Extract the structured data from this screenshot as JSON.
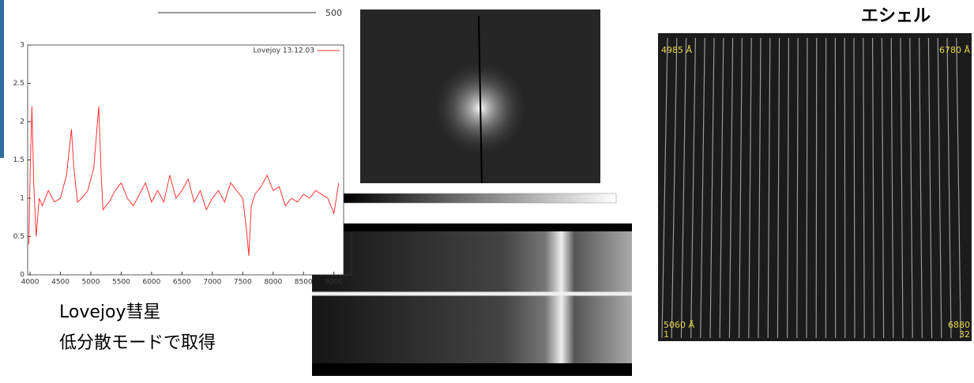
{
  "chart_data": {
    "type": "line",
    "legend": "Lovejoy 13.12.03",
    "color": "#ff3333",
    "xlim": [
      3960,
      9160
    ],
    "ylim": [
      0,
      3
    ],
    "xticks": [
      4000,
      4500,
      5000,
      5500,
      6000,
      6500,
      7000,
      7500,
      8000,
      8500,
      9000
    ],
    "yticks": [
      0,
      0.5,
      1,
      1.5,
      2,
      2.5,
      3
    ],
    "x": [
      3980,
      4000,
      4030,
      4060,
      4100,
      4150,
      4200,
      4300,
      4400,
      4500,
      4600,
      4680,
      4720,
      4780,
      4850,
      4950,
      5050,
      5130,
      5170,
      5200,
      5300,
      5400,
      5500,
      5600,
      5700,
      5800,
      5900,
      6000,
      6100,
      6200,
      6300,
      6400,
      6500,
      6600,
      6700,
      6800,
      6900,
      7000,
      7100,
      7200,
      7300,
      7400,
      7500,
      7560,
      7600,
      7640,
      7700,
      7800,
      7900,
      8000,
      8100,
      8200,
      8300,
      8400,
      8500,
      8600,
      8700,
      8800,
      8900,
      9000,
      9080
    ],
    "values": [
      0.4,
      1.3,
      2.2,
      1.2,
      0.5,
      1.0,
      0.9,
      1.1,
      0.95,
      1.0,
      1.3,
      1.9,
      1.4,
      0.95,
      1.0,
      1.1,
      1.4,
      2.2,
      1.3,
      0.85,
      0.95,
      1.1,
      1.2,
      1.0,
      0.9,
      1.05,
      1.2,
      0.95,
      1.1,
      0.95,
      1.3,
      1.0,
      1.1,
      1.25,
      0.95,
      1.1,
      0.85,
      1.0,
      1.1,
      0.95,
      1.2,
      1.1,
      1.0,
      0.6,
      0.25,
      0.9,
      1.05,
      1.15,
      1.3,
      1.1,
      1.15,
      0.9,
      1.0,
      0.95,
      1.05,
      1.0,
      1.1,
      1.05,
      1.0,
      0.8,
      1.2
    ]
  },
  "scale_label": "500",
  "echelle_title": "エシェル",
  "caption": [
    "Lovejoy彗星",
    "低分散モードで取得"
  ],
  "echelle_labels": {
    "top_left": "4985 Å",
    "top_right": "6780 Å",
    "bottom_left": "5060 Å",
    "bottom_left_order": "1",
    "bottom_right": "6880",
    "bottom_right_order": "32"
  }
}
